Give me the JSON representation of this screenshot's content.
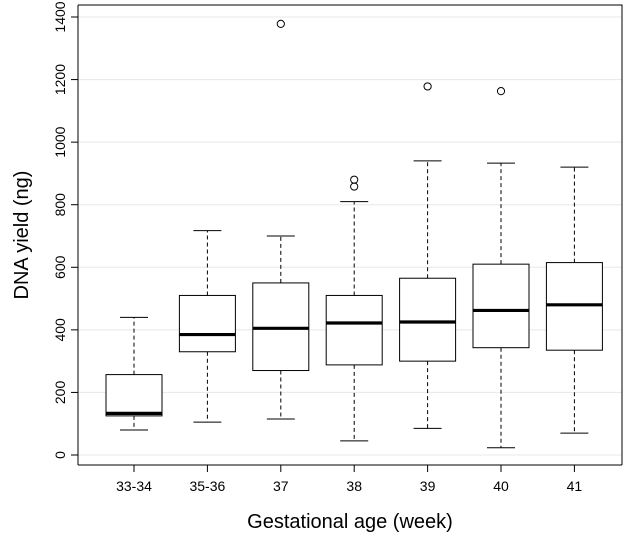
{
  "chart_data": {
    "type": "box",
    "title": "",
    "xlabel": "Gestational age (week)",
    "ylabel": "DNA yield (ng)",
    "ylim": [
      0,
      1400
    ],
    "yticks": [
      0,
      200,
      400,
      600,
      800,
      1000,
      1200,
      1400
    ],
    "grid": "horizontal",
    "categories": [
      "33-34",
      "35-36",
      "37",
      "38",
      "39",
      "40",
      "41"
    ],
    "boxes": [
      {
        "category": "33-34",
        "min": 80,
        "q1": 125,
        "median": 133,
        "q3": 257,
        "max": 440,
        "outliers": []
      },
      {
        "category": "35-36",
        "min": 105,
        "q1": 330,
        "median": 385,
        "q3": 510,
        "max": 717,
        "outliers": []
      },
      {
        "category": "37",
        "min": 115,
        "q1": 270,
        "median": 405,
        "q3": 550,
        "max": 700,
        "outliers": [
          1378
        ]
      },
      {
        "category": "38",
        "min": 45,
        "q1": 288,
        "median": 422,
        "q3": 510,
        "max": 810,
        "outliers": [
          858,
          880
        ]
      },
      {
        "category": "39",
        "min": 85,
        "q1": 300,
        "median": 425,
        "q3": 565,
        "max": 940,
        "outliers": [
          1178
        ]
      },
      {
        "category": "40",
        "min": 23,
        "q1": 343,
        "median": 462,
        "q3": 610,
        "max": 933,
        "outliers": [
          1163
        ]
      },
      {
        "category": "41",
        "min": 70,
        "q1": 335,
        "median": 480,
        "q3": 615,
        "max": 920,
        "outliers": []
      }
    ]
  }
}
